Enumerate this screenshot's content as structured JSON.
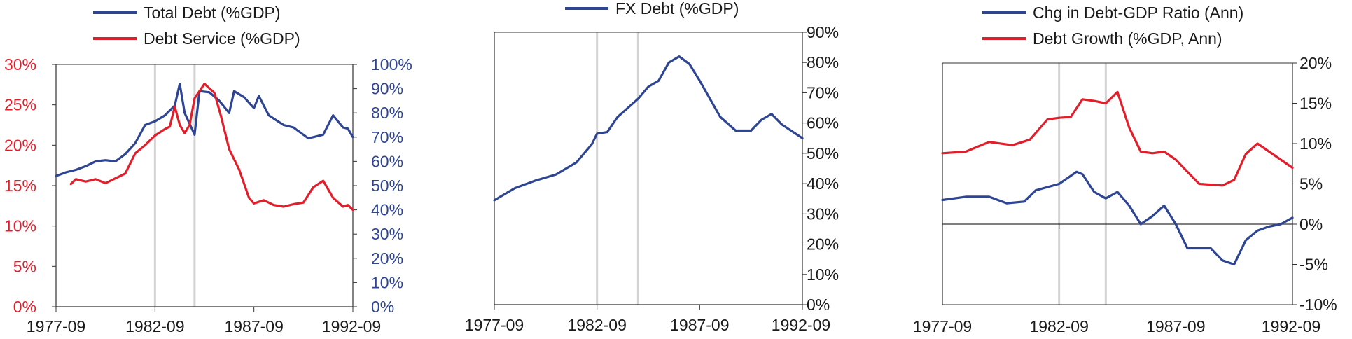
{
  "colors": {
    "blue": "#2E4593",
    "red": "#E31E2B",
    "shade": "#D3D3D3",
    "axis": "#333333",
    "text": "#1a1a1a"
  },
  "chart_data": [
    {
      "type": "line",
      "x_range": [
        "1977-09",
        "1992-09"
      ],
      "x_ticks": [
        "1977-09",
        "1982-09",
        "1987-09",
        "1992-09"
      ],
      "shaded_dates": [
        "1982-09",
        "1984-09"
      ],
      "y_left": {
        "range": [
          0,
          30
        ],
        "ticks": [
          "0%",
          "5%",
          "10%",
          "15%",
          "20%",
          "25%",
          "30%"
        ],
        "color": "#E31E2B"
      },
      "y_right": {
        "range": [
          0,
          100
        ],
        "ticks": [
          "0%",
          "10%",
          "20%",
          "30%",
          "40%",
          "50%",
          "60%",
          "70%",
          "80%",
          "90%",
          "100%"
        ],
        "color": "#2E4593"
      },
      "legend": [
        "Total Debt (%GDP)",
        "Debt Service (%GDP)"
      ],
      "series": [
        {
          "name": "Total Debt (%GDP)",
          "axis": "right",
          "color": "#2E4593",
          "points": [
            [
              "1977-09",
              54
            ],
            [
              "1978-03",
              55.5
            ],
            [
              "1978-09",
              56.5
            ],
            [
              "1979-03",
              58
            ],
            [
              "1979-09",
              60
            ],
            [
              "1980-03",
              60.5
            ],
            [
              "1980-09",
              60
            ],
            [
              "1981-03",
              63
            ],
            [
              "1981-09",
              67.5
            ],
            [
              "1982-03",
              75
            ],
            [
              "1982-09",
              76.5
            ],
            [
              "1983-03",
              79
            ],
            [
              "1983-09",
              83
            ],
            [
              "1983-12",
              92
            ],
            [
              "1984-03",
              80
            ],
            [
              "1984-09",
              71
            ],
            [
              "1984-12",
              89
            ],
            [
              "1985-06",
              88.5
            ],
            [
              "1985-12",
              85
            ],
            [
              "1986-06",
              80
            ],
            [
              "1986-09",
              89
            ],
            [
              "1987-03",
              86.5
            ],
            [
              "1987-09",
              82
            ],
            [
              "1987-12",
              87
            ],
            [
              "1988-06",
              79
            ],
            [
              "1989-03",
              75
            ],
            [
              "1989-09",
              74
            ],
            [
              "1990-06",
              69.5
            ],
            [
              "1991-03",
              71
            ],
            [
              "1991-09",
              79
            ],
            [
              "1992-03",
              74
            ],
            [
              "1992-06",
              73.5
            ],
            [
              "1992-09",
              70
            ]
          ]
        },
        {
          "name": "Debt Service (%GDP)",
          "axis": "left",
          "color": "#E31E2B",
          "points": [
            [
              "1978-06",
              15.2
            ],
            [
              "1978-09",
              15.8
            ],
            [
              "1979-03",
              15.5
            ],
            [
              "1979-09",
              15.8
            ],
            [
              "1980-03",
              15.3
            ],
            [
              "1980-09",
              15.9
            ],
            [
              "1981-03",
              16.5
            ],
            [
              "1981-09",
              19
            ],
            [
              "1982-03",
              20
            ],
            [
              "1982-09",
              21.2
            ],
            [
              "1983-03",
              22
            ],
            [
              "1983-06",
              22.3
            ],
            [
              "1983-09",
              24.8
            ],
            [
              "1983-12",
              22.5
            ],
            [
              "1984-03",
              21.5
            ],
            [
              "1984-06",
              22.5
            ],
            [
              "1984-09",
              25.8
            ],
            [
              "1985-03",
              27.6
            ],
            [
              "1985-09",
              26.5
            ],
            [
              "1986-01",
              23.6
            ],
            [
              "1986-06",
              19.5
            ],
            [
              "1986-12",
              17
            ],
            [
              "1987-06",
              13.5
            ],
            [
              "1987-09",
              12.8
            ],
            [
              "1988-03",
              13.2
            ],
            [
              "1988-09",
              12.6
            ],
            [
              "1989-03",
              12.4
            ],
            [
              "1989-09",
              12.7
            ],
            [
              "1990-03",
              12.9
            ],
            [
              "1990-09",
              14.8
            ],
            [
              "1991-03",
              15.6
            ],
            [
              "1991-09",
              13.5
            ],
            [
              "1992-03",
              12.4
            ],
            [
              "1992-06",
              12.6
            ],
            [
              "1992-09",
              12
            ]
          ]
        }
      ]
    },
    {
      "type": "line",
      "x_range": [
        "1977-09",
        "1992-09"
      ],
      "x_ticks": [
        "1977-09",
        "1982-09",
        "1987-09",
        "1992-09"
      ],
      "shaded_dates": [
        "1982-09",
        "1984-09"
      ],
      "y_right": {
        "range": [
          0,
          90
        ],
        "ticks": [
          "0%",
          "10%",
          "20%",
          "30%",
          "40%",
          "50%",
          "60%",
          "70%",
          "80%",
          "90%"
        ],
        "color": "#1a1a1a"
      },
      "legend": [
        "FX Debt (%GDP)"
      ],
      "series": [
        {
          "name": "FX Debt (%GDP)",
          "axis": "right",
          "color": "#2E4593",
          "points": [
            [
              "1977-09",
              34.5
            ],
            [
              "1978-09",
              38.5
            ],
            [
              "1979-09",
              41
            ],
            [
              "1980-09",
              43
            ],
            [
              "1981-09",
              47
            ],
            [
              "1982-06",
              53
            ],
            [
              "1982-09",
              56.5
            ],
            [
              "1983-03",
              57
            ],
            [
              "1983-09",
              62
            ],
            [
              "1984-03",
              65
            ],
            [
              "1984-09",
              68
            ],
            [
              "1985-03",
              72
            ],
            [
              "1985-09",
              74
            ],
            [
              "1986-03",
              80
            ],
            [
              "1986-09",
              82
            ],
            [
              "1987-03",
              79.5
            ],
            [
              "1987-09",
              74
            ],
            [
              "1988-03",
              68
            ],
            [
              "1988-09",
              62
            ],
            [
              "1989-06",
              57.5
            ],
            [
              "1990-03",
              57.5
            ],
            [
              "1990-09",
              61
            ],
            [
              "1991-03",
              63
            ],
            [
              "1991-09",
              59.5
            ],
            [
              "1992-09",
              55
            ]
          ]
        }
      ]
    },
    {
      "type": "line",
      "x_range": [
        "1977-09",
        "1992-09"
      ],
      "x_ticks": [
        "1977-09",
        "1982-09",
        "1987-09",
        "1992-09"
      ],
      "shaded_dates": [
        "1982-09",
        "1984-09"
      ],
      "y_right": {
        "range": [
          -10,
          20
        ],
        "ticks": [
          "-10%",
          "-5%",
          "0%",
          "5%",
          "10%",
          "15%",
          "20%"
        ],
        "color": "#1a1a1a"
      },
      "legend": [
        "Chg in Debt-GDP Ratio (Ann)",
        "Debt Growth (%GDP, Ann)"
      ],
      "series": [
        {
          "name": "Chg in Debt-GDP Ratio (Ann)",
          "axis": "right",
          "color": "#2E4593",
          "points": [
            [
              "1977-09",
              3
            ],
            [
              "1978-09",
              3.4
            ],
            [
              "1979-09",
              3.4
            ],
            [
              "1980-06",
              2.6
            ],
            [
              "1981-03",
              2.8
            ],
            [
              "1981-09",
              4.2
            ],
            [
              "1982-09",
              5
            ],
            [
              "1983-06",
              6.5
            ],
            [
              "1983-09",
              6.2
            ],
            [
              "1984-03",
              4
            ],
            [
              "1984-09",
              3.2
            ],
            [
              "1985-03",
              4
            ],
            [
              "1985-09",
              2.3
            ],
            [
              "1986-03",
              0
            ],
            [
              "1986-09",
              1
            ],
            [
              "1987-03",
              2.3
            ],
            [
              "1987-09",
              0
            ],
            [
              "1988-03",
              -3
            ],
            [
              "1988-09",
              -3
            ],
            [
              "1989-03",
              -3
            ],
            [
              "1989-09",
              -4.5
            ],
            [
              "1990-03",
              -5
            ],
            [
              "1990-09",
              -2
            ],
            [
              "1991-03",
              -0.8
            ],
            [
              "1991-09",
              -0.3
            ],
            [
              "1992-03",
              0
            ],
            [
              "1992-09",
              0.8
            ]
          ]
        },
        {
          "name": "Debt Growth (%GDP, Ann)",
          "axis": "right",
          "color": "#E31E2B",
          "points": [
            [
              "1977-09",
              8.8
            ],
            [
              "1978-09",
              9
            ],
            [
              "1979-09",
              10.2
            ],
            [
              "1980-09",
              9.8
            ],
            [
              "1981-06",
              10.5
            ],
            [
              "1982-03",
              13
            ],
            [
              "1982-09",
              13.2
            ],
            [
              "1983-03",
              13.3
            ],
            [
              "1983-09",
              15.5
            ],
            [
              "1984-03",
              15.3
            ],
            [
              "1984-09",
              15
            ],
            [
              "1985-03",
              16.4
            ],
            [
              "1985-09",
              12
            ],
            [
              "1986-03",
              9
            ],
            [
              "1986-09",
              8.8
            ],
            [
              "1987-03",
              9
            ],
            [
              "1987-09",
              8
            ],
            [
              "1988-03",
              6.5
            ],
            [
              "1988-09",
              5
            ],
            [
              "1989-09",
              4.8
            ],
            [
              "1990-03",
              5.5
            ],
            [
              "1990-09",
              8.7
            ],
            [
              "1991-03",
              10
            ],
            [
              "1991-09",
              9
            ],
            [
              "1992-03",
              8
            ],
            [
              "1992-09",
              7
            ]
          ]
        }
      ]
    }
  ]
}
